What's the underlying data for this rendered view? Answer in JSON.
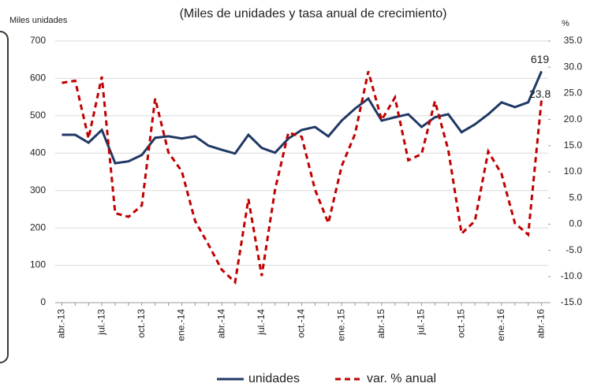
{
  "chart_data": {
    "type": "line",
    "title": "(Miles de unidades y tasa anual de crecimiento)",
    "y_label": "Miles unidades",
    "y2_label": "%",
    "categories": [
      "abr.-13",
      null,
      null,
      "jul.-13",
      null,
      null,
      "oct.-13",
      null,
      null,
      "ene.-14",
      null,
      null,
      "abr.-14",
      null,
      null,
      "jul.-14",
      null,
      null,
      "oct.-14",
      null,
      null,
      "ene.-15",
      null,
      null,
      "abr.-15",
      null,
      null,
      "jul.-15",
      null,
      null,
      "oct.-15",
      null,
      null,
      "ene.-16",
      null,
      null,
      "abr.-16"
    ],
    "series": [
      {
        "name": "unidades",
        "color": "#1f3864",
        "dash": false,
        "values": [
          449,
          449,
          428,
          462,
          373,
          378,
          395,
          441,
          445,
          439,
          445,
          420,
          409,
          399,
          449,
          414,
          401,
          439,
          462,
          470,
          445,
          487,
          519,
          546,
          487,
          496,
          504,
          470,
          496,
          504,
          456,
          477,
          504,
          536,
          523,
          536,
          619
        ]
      },
      {
        "name": "var. % anual",
        "color": "#c00000",
        "dash": true,
        "axis": "y2",
        "values": [
          27,
          27.4,
          16.4,
          28.2,
          2.1,
          1.4,
          3.6,
          24,
          13.7,
          10.1,
          0.6,
          -3.9,
          -8.7,
          -11.1,
          4.8,
          -9.9,
          6.6,
          17.5,
          16.7,
          6.6,
          0.2,
          11.1,
          17.2,
          29.2,
          19.9,
          24.2,
          12.2,
          13.4,
          23.5,
          14.2,
          -1.8,
          0.6,
          13.9,
          9.6,
          0.2,
          -2,
          23.8
        ]
      }
    ],
    "ylim": [
      0,
      700
    ],
    "yticks": [
      0,
      100,
      200,
      300,
      400,
      500,
      600,
      700
    ],
    "y2lim": [
      -15,
      35
    ],
    "y2ticks": [
      {
        "value": -15,
        "label": "-15.0"
      },
      {
        "value": -10,
        "label": "-10.0"
      },
      {
        "value": -5,
        "label": "-5.0"
      },
      {
        "value": 0,
        "label": "0.0"
      },
      {
        "value": 5,
        "label": "5.0"
      },
      {
        "value": 10,
        "label": "10.0"
      },
      {
        "value": 15,
        "label": "15.0"
      },
      {
        "value": 20,
        "label": "20.0"
      },
      {
        "value": 25,
        "label": "25.0"
      },
      {
        "value": 30,
        "label": "30.0"
      },
      {
        "value": 35,
        "label": "35.0"
      }
    ],
    "grid": true,
    "legend": "bottom"
  }
}
